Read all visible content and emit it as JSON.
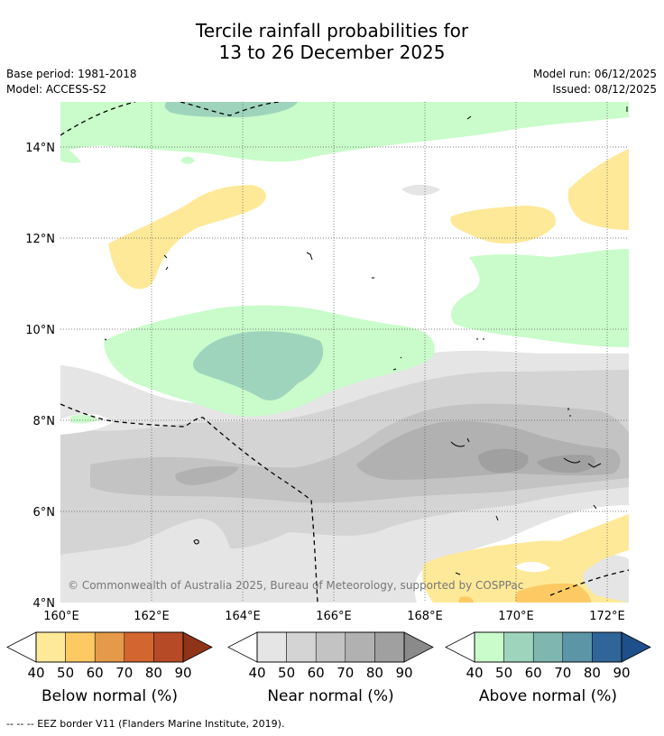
{
  "title": {
    "line1": "Tercile rainfall probabilities for",
    "line2": "13 to 26 December 2025"
  },
  "meta": {
    "base_period": "Base period: 1981-2018",
    "model": "Model: ACCESS-S2",
    "model_run": "Model run: 06/12/2025",
    "issued": "Issued: 08/12/2025"
  },
  "map": {
    "lat_labels": [
      "14°N",
      "12°N",
      "10°N",
      "8°N",
      "6°N",
      "4°N"
    ],
    "lon_labels": [
      "160°E",
      "162°E",
      "164°E",
      "166°E",
      "168°E",
      "170°E",
      "172°E"
    ],
    "copyright": "© Commonwealth of Australia 2025, Bureau of Meteorology, supported by COSPPac"
  },
  "colorbars": [
    {
      "title": "Below normal (%)",
      "ticks": [
        "40",
        "50",
        "60",
        "70",
        "80",
        "90"
      ],
      "colors": [
        "#fee999",
        "#fdc962",
        "#e59a49",
        "#d3652f",
        "#b64a27",
        "#8f3319"
      ]
    },
    {
      "title": "Near normal (%)",
      "ticks": [
        "40",
        "50",
        "60",
        "70",
        "80",
        "90"
      ],
      "colors": [
        "#e5e5e5",
        "#d4d4d4",
        "#c3c3c3",
        "#b1b1b1",
        "#a0a0a0",
        "#8a8a8a"
      ]
    },
    {
      "title": "Above normal (%)",
      "ticks": [
        "40",
        "50",
        "60",
        "70",
        "80",
        "90"
      ],
      "colors": [
        "#c9fcca",
        "#9fd4bc",
        "#7fb6b0",
        "#5b95a6",
        "#2f6598",
        "#1d4f8a"
      ]
    }
  ],
  "footer": "--  --  -- EEZ border V11 (Flanders Marine Institute, 2019)."
}
